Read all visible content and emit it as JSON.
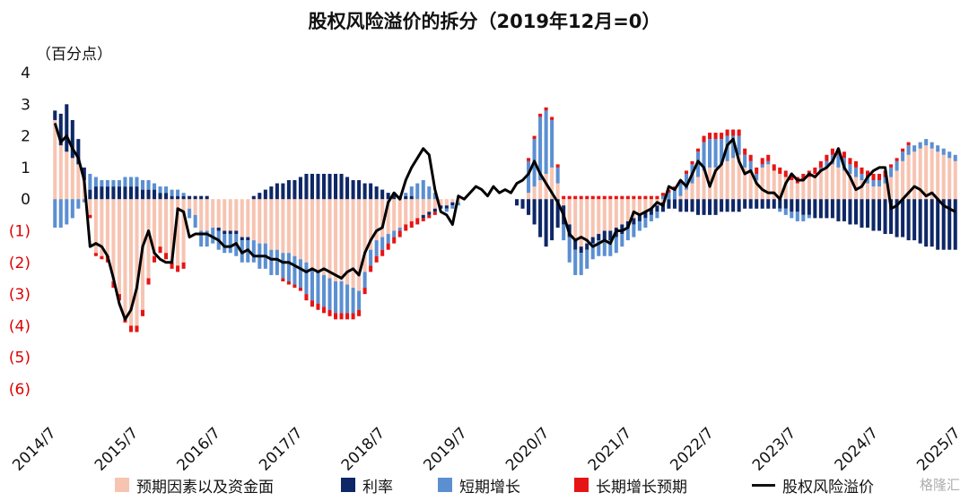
{
  "chart_data": {
    "type": "bar",
    "title": "股权风险溢价的拆分（2019年12月=0）",
    "unit_label": "（百分点）",
    "y_ticks": [
      4,
      3,
      2,
      1,
      0,
      -1,
      -2,
      -3,
      -4,
      -5,
      -6
    ],
    "y_tick_labels": [
      "4",
      "3",
      "2",
      "1",
      "0",
      "(1)",
      "(2)",
      "(3)",
      "(4)",
      "(5)",
      "(6)"
    ],
    "ylim": [
      -6,
      4
    ],
    "x_tick_labels": [
      "2014/7",
      "2015/7",
      "2016/7",
      "2017/7",
      "2018/7",
      "2019/7",
      "2020/7",
      "2021/7",
      "2022/7",
      "2023/7",
      "2024/7",
      "2025/7"
    ],
    "legend_position": "bottom",
    "colors": {
      "expected": "#f7c4b2",
      "rate": "#0e2766",
      "short": "#5b8fd1",
      "long": "#e61515",
      "erp": "#000000",
      "pos_tick": "#111111",
      "neg_tick": "#e00000"
    },
    "series": [
      {
        "name": "预期因素以及资金面",
        "color": "#f7c4b2",
        "values": [
          2.5,
          1.7,
          1.5,
          1.3,
          1.1,
          0.6,
          -0.5,
          -1.7,
          -1.8,
          -1.8,
          -2.6,
          -3.0,
          -3.7,
          -4.0,
          -4.0,
          -3.5,
          -2.5,
          -1.8,
          -1.5,
          -1.7,
          -2.0,
          -2.1,
          -2.0,
          -0.3,
          -0.5,
          -1.0,
          -1.0,
          -0.9,
          -0.9,
          -1.0,
          -1.0,
          -1.0,
          -1.2,
          -1.2,
          -1.3,
          -1.4,
          -1.4,
          -1.6,
          -1.6,
          -1.7,
          -1.7,
          -1.8,
          -1.9,
          -2.0,
          -2.2,
          -2.3,
          -2.4,
          -2.5,
          -2.6,
          -2.6,
          -2.7,
          -2.8,
          -2.9,
          -2.3,
          -1.6,
          -1.3,
          -1.2,
          -1.1,
          -1.0,
          -0.9,
          -0.8,
          -0.7,
          -0.6,
          -0.5,
          -0.4,
          -0.3,
          -0.2,
          -0.2,
          -0.1,
          -0.1,
          0.0,
          0.0,
          0.0,
          0.0,
          0.0,
          0.0,
          0.0,
          0.0,
          0.0,
          0.0,
          0.0,
          0.2,
          0.4,
          0.6,
          0.8,
          1.0,
          0.5,
          -0.2,
          -0.8,
          -1.3,
          -1.5,
          -1.4,
          -1.2,
          -1.1,
          -1.0,
          -1.0,
          -0.9,
          -0.8,
          -0.7,
          -0.6,
          -0.5,
          -0.4,
          -0.3,
          -0.2,
          -0.1,
          0.0,
          0.0,
          0.1,
          0.3,
          0.5,
          0.7,
          0.9,
          1.0,
          1.0,
          1.1,
          1.2,
          1.3,
          1.4,
          1.0,
          0.9,
          0.6,
          1.0,
          1.1,
          0.9,
          0.8,
          0.7,
          0.6,
          0.5,
          0.6,
          0.7,
          0.8,
          0.9,
          1.0,
          1.1,
          1.0,
          0.9,
          0.8,
          0.7,
          0.6,
          0.5,
          0.4,
          0.4,
          0.5,
          0.7,
          0.9,
          1.2,
          1.4,
          1.5,
          1.6,
          1.7,
          1.6,
          1.5,
          1.4,
          1.3,
          1.2,
          1.2
        ]
      },
      {
        "name": "利率",
        "color": "#0e2766",
        "values": [
          0.3,
          1.0,
          1.5,
          1.2,
          0.8,
          0.4,
          0.3,
          0.4,
          0.4,
          0.4,
          0.4,
          0.4,
          0.4,
          0.4,
          0.4,
          0.3,
          0.3,
          0.3,
          0.2,
          0.2,
          0.1,
          0.1,
          0.1,
          0.1,
          0.1,
          0.1,
          0.1,
          0.0,
          -0.1,
          -0.1,
          -0.1,
          -0.1,
          -0.1,
          -0.1,
          0.1,
          0.2,
          0.3,
          0.4,
          0.5,
          0.5,
          0.6,
          0.6,
          0.7,
          0.8,
          0.8,
          0.8,
          0.8,
          0.8,
          0.8,
          0.8,
          0.7,
          0.6,
          0.6,
          0.5,
          0.5,
          0.4,
          0.3,
          0.2,
          0.2,
          0.1,
          0.1,
          0.1,
          0.0,
          -0.1,
          -0.1,
          -0.1,
          -0.1,
          -0.1,
          -0.1,
          0.0,
          0.0,
          0.0,
          0.0,
          0.0,
          0.0,
          0.0,
          0.0,
          0.0,
          0.0,
          -0.2,
          -0.3,
          -0.5,
          -0.8,
          -1.2,
          -1.5,
          -1.3,
          -0.9,
          -0.6,
          -0.4,
          -0.3,
          -0.2,
          -0.2,
          -0.2,
          -0.2,
          -0.3,
          -0.3,
          -0.3,
          -0.3,
          -0.2,
          -0.2,
          -0.2,
          -0.2,
          -0.2,
          -0.2,
          -0.3,
          -0.3,
          -0.3,
          -0.4,
          -0.4,
          -0.4,
          -0.5,
          -0.5,
          -0.5,
          -0.5,
          -0.4,
          -0.4,
          -0.4,
          -0.4,
          -0.3,
          -0.3,
          -0.3,
          -0.3,
          -0.3,
          -0.3,
          -0.3,
          -0.3,
          -0.4,
          -0.4,
          -0.5,
          -0.5,
          -0.6,
          -0.6,
          -0.6,
          -0.6,
          -0.7,
          -0.7,
          -0.8,
          -0.8,
          -0.9,
          -0.9,
          -1.0,
          -1.0,
          -1.1,
          -1.1,
          -1.2,
          -1.2,
          -1.3,
          -1.3,
          -1.4,
          -1.5,
          -1.5,
          -1.6,
          -1.6,
          -1.6,
          -1.6,
          -1.6
        ]
      },
      {
        "name": "短期增长",
        "color": "#5b8fd1",
        "values": [
          -0.9,
          -0.9,
          -0.8,
          -0.6,
          -0.3,
          -0.1,
          0.5,
          0.3,
          0.2,
          0.2,
          0.2,
          0.2,
          0.3,
          0.3,
          0.3,
          0.3,
          0.3,
          0.2,
          0.2,
          0.2,
          0.2,
          0.2,
          0.1,
          -0.3,
          -0.4,
          -0.5,
          -0.5,
          -0.5,
          -0.6,
          -0.6,
          -0.6,
          -0.7,
          -0.7,
          -0.7,
          -0.7,
          -0.8,
          -0.8,
          -0.8,
          -0.8,
          -0.8,
          -0.9,
          -0.9,
          -0.9,
          -1.0,
          -1.0,
          -1.0,
          -1.0,
          -1.0,
          -1.0,
          -1.0,
          -0.9,
          -0.8,
          -0.6,
          -0.5,
          -0.5,
          -0.5,
          -0.4,
          -0.3,
          -0.2,
          -0.1,
          0.1,
          0.3,
          0.5,
          0.6,
          0.4,
          0.2,
          0.0,
          -0.1,
          -0.1,
          -0.1,
          0.0,
          0.0,
          0.0,
          0.0,
          0.0,
          0.0,
          0.0,
          0.0,
          0.0,
          0.0,
          0.0,
          1.0,
          1.5,
          2.0,
          2.0,
          1.5,
          0.5,
          -0.5,
          -0.8,
          -0.8,
          -0.7,
          -0.6,
          -0.5,
          -0.5,
          -0.5,
          -0.5,
          -0.5,
          -0.4,
          -0.4,
          -0.4,
          -0.3,
          -0.3,
          -0.2,
          -0.2,
          0.1,
          0.2,
          0.3,
          0.4,
          0.5,
          0.6,
          0.8,
          0.9,
          0.9,
          0.9,
          0.8,
          0.8,
          0.7,
          0.6,
          0.4,
          0.3,
          0.2,
          0.1,
          0.1,
          0.0,
          -0.1,
          -0.2,
          -0.2,
          -0.3,
          -0.2,
          -0.1,
          0.0,
          0.1,
          0.2,
          0.3,
          0.4,
          0.4,
          0.3,
          0.3,
          0.2,
          0.2,
          0.2,
          0.2,
          0.2,
          0.3,
          0.3,
          0.3,
          0.3,
          0.2,
          0.2,
          0.2,
          0.2,
          0.2,
          0.2,
          0.2,
          0.2,
          0.2
        ]
      },
      {
        "name": "长期增长预期",
        "color": "#e61515",
        "values": [
          0.0,
          0.0,
          0.0,
          0.0,
          0.0,
          0.0,
          -0.1,
          -0.1,
          -0.1,
          -0.2,
          -0.2,
          -0.2,
          -0.2,
          -0.2,
          -0.2,
          -0.2,
          -0.2,
          -0.2,
          -0.2,
          -0.2,
          -0.2,
          -0.2,
          -0.2,
          0.0,
          0.0,
          0.0,
          0.0,
          0.0,
          0.0,
          0.0,
          0.0,
          0.0,
          0.0,
          0.0,
          0.0,
          0.0,
          0.0,
          0.0,
          0.0,
          -0.1,
          -0.1,
          -0.1,
          -0.1,
          -0.2,
          -0.2,
          -0.2,
          -0.2,
          -0.2,
          -0.2,
          -0.2,
          -0.2,
          -0.2,
          -0.2,
          -0.2,
          -0.2,
          -0.2,
          -0.2,
          -0.2,
          -0.2,
          -0.2,
          -0.2,
          -0.2,
          -0.2,
          -0.1,
          -0.1,
          -0.1,
          0.0,
          0.0,
          0.0,
          0.0,
          0.0,
          0.0,
          0.0,
          0.0,
          0.0,
          0.0,
          0.0,
          0.0,
          0.0,
          0.0,
          0.0,
          0.1,
          0.1,
          0.1,
          0.1,
          0.1,
          0.1,
          0.1,
          0.1,
          0.1,
          0.1,
          0.1,
          0.1,
          0.1,
          0.1,
          0.1,
          0.1,
          0.1,
          0.1,
          0.1,
          0.1,
          0.1,
          0.1,
          0.1,
          0.1,
          0.1,
          0.1,
          0.1,
          0.1,
          0.1,
          0.1,
          0.2,
          0.2,
          0.2,
          0.2,
          0.2,
          0.2,
          0.2,
          0.2,
          0.2,
          0.2,
          0.2,
          0.2,
          0.2,
          0.2,
          0.2,
          0.2,
          0.2,
          0.2,
          0.2,
          0.2,
          0.2,
          0.2,
          0.2,
          0.2,
          0.2,
          0.2,
          0.2,
          0.2,
          0.2,
          0.2,
          0.2,
          0.2,
          0.1,
          0.1,
          0.1,
          0.1,
          0.0,
          0.0,
          0.0,
          0.0,
          0.0,
          0.0,
          0.0,
          0.0,
          0.0
        ]
      }
    ],
    "erp_series": {
      "name": "股权风险溢价",
      "color": "#000000",
      "values": [
        2.4,
        1.8,
        2.0,
        1.6,
        1.3,
        0.6,
        -1.5,
        -1.4,
        -1.5,
        -1.8,
        -2.5,
        -3.3,
        -3.8,
        -3.5,
        -2.8,
        -1.5,
        -1.0,
        -1.7,
        -1.9,
        -2.0,
        -2.0,
        -0.3,
        -0.4,
        -1.2,
        -1.1,
        -1.1,
        -1.1,
        -1.2,
        -1.3,
        -1.5,
        -1.5,
        -1.4,
        -1.7,
        -1.6,
        -1.8,
        -1.8,
        -1.8,
        -1.9,
        -1.9,
        -2.0,
        -2.0,
        -2.1,
        -2.2,
        -2.3,
        -2.2,
        -2.3,
        -2.2,
        -2.3,
        -2.4,
        -2.5,
        -2.3,
        -2.2,
        -2.4,
        -1.7,
        -1.3,
        -1.0,
        -0.9,
        -0.1,
        0.2,
        0.0,
        0.6,
        1.0,
        1.3,
        1.6,
        1.4,
        0.3,
        -0.4,
        -0.5,
        -0.8,
        0.1,
        0.0,
        0.2,
        0.4,
        0.3,
        0.1,
        0.4,
        0.2,
        0.3,
        0.2,
        0.5,
        0.6,
        0.8,
        1.2,
        0.8,
        0.5,
        0.2,
        -0.1,
        -0.5,
        -1.1,
        -1.3,
        -1.2,
        -1.3,
        -1.5,
        -1.4,
        -1.3,
        -1.4,
        -1.0,
        -1.0,
        -0.9,
        -0.4,
        -0.5,
        -0.4,
        -0.3,
        -0.1,
        -0.2,
        0.4,
        0.3,
        0.6,
        0.4,
        0.8,
        1.2,
        1.0,
        0.4,
        0.9,
        1.1,
        1.7,
        1.9,
        1.2,
        0.8,
        0.9,
        0.5,
        0.3,
        0.2,
        0.2,
        0.0,
        0.5,
        0.8,
        0.6,
        0.6,
        0.8,
        0.7,
        0.9,
        1.0,
        1.2,
        1.6,
        1.0,
        0.7,
        0.3,
        0.4,
        0.7,
        0.9,
        1.0,
        1.0,
        -0.3,
        -0.2,
        0.0,
        0.2,
        0.4,
        0.3,
        0.1,
        0.2,
        0.0,
        -0.2,
        -0.3,
        -0.4
      ]
    }
  },
  "watermark": "格隆汇"
}
